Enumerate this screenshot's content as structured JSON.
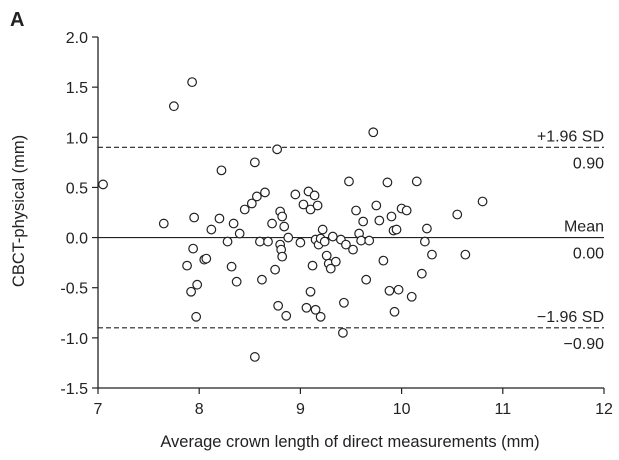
{
  "panel_label": "A",
  "chart_data": {
    "type": "scatter",
    "title": "",
    "xlabel": "Average crown length of direct measurements (mm)",
    "ylabel": "CBCT-physical (mm)",
    "xlim": [
      7,
      12
    ],
    "ylim": [
      -1.5,
      2.0
    ],
    "xticks": [
      7,
      8,
      9,
      10,
      11,
      12
    ],
    "xtick_labels": [
      "7",
      "8",
      "9",
      "10",
      "11",
      "12"
    ],
    "yticks": [
      2.0,
      1.5,
      1.0,
      0.5,
      0.0,
      -0.5,
      -1.0,
      -1.5
    ],
    "ytick_labels": [
      "2.0",
      "1.5",
      "1.0",
      "0.5",
      "0.0",
      "-0.5",
      "-1.0",
      "-1.5"
    ],
    "grid": false,
    "reference_lines": [
      {
        "y": 0.9,
        "style": "dashed",
        "label_above": "+1.96 SD",
        "label_below": "0.90"
      },
      {
        "y": 0.0,
        "style": "solid",
        "label_above": "Mean",
        "label_below": "0.00"
      },
      {
        "y": -0.9,
        "style": "dashed",
        "label_above": "−1.96 SD",
        "label_below": "−0.90"
      }
    ],
    "marker": "open-circle",
    "points": [
      [
        7.05,
        0.53
      ],
      [
        7.65,
        0.14
      ],
      [
        7.75,
        1.31
      ],
      [
        7.93,
        1.55
      ],
      [
        7.95,
        0.2
      ],
      [
        7.94,
        -0.11
      ],
      [
        7.88,
        -0.28
      ],
      [
        7.92,
        -0.54
      ],
      [
        7.98,
        -0.47
      ],
      [
        7.97,
        -0.79
      ],
      [
        8.05,
        -0.22
      ],
      [
        8.07,
        -0.21
      ],
      [
        8.12,
        0.08
      ],
      [
        8.2,
        0.19
      ],
      [
        8.22,
        0.67
      ],
      [
        8.28,
        -0.04
      ],
      [
        8.32,
        -0.29
      ],
      [
        8.34,
        0.14
      ],
      [
        8.37,
        -0.44
      ],
      [
        8.4,
        0.04
      ],
      [
        8.45,
        0.28
      ],
      [
        8.52,
        0.34
      ],
      [
        8.55,
        0.75
      ],
      [
        8.57,
        0.41
      ],
      [
        8.6,
        -0.04
      ],
      [
        8.62,
        -0.42
      ],
      [
        8.65,
        0.45
      ],
      [
        8.68,
        -0.04
      ],
      [
        8.72,
        0.14
      ],
      [
        8.75,
        -0.32
      ],
      [
        8.77,
        0.88
      ],
      [
        8.78,
        -0.68
      ],
      [
        8.8,
        0.26
      ],
      [
        8.82,
        0.21
      ],
      [
        8.8,
        -0.07
      ],
      [
        8.81,
        -0.12
      ],
      [
        8.82,
        -0.19
      ],
      [
        8.84,
        0.11
      ],
      [
        8.86,
        -0.78
      ],
      [
        8.88,
        0.0
      ],
      [
        8.55,
        -1.19
      ],
      [
        8.95,
        0.43
      ],
      [
        9.0,
        -0.05
      ],
      [
        9.03,
        0.33
      ],
      [
        9.06,
        -0.7
      ],
      [
        9.08,
        0.46
      ],
      [
        9.1,
        0.28
      ],
      [
        9.1,
        -0.54
      ],
      [
        9.12,
        -0.28
      ],
      [
        9.14,
        0.42
      ],
      [
        9.15,
        -0.02
      ],
      [
        9.15,
        -0.72
      ],
      [
        9.17,
        0.32
      ],
      [
        9.18,
        -0.07
      ],
      [
        9.2,
        -0.01
      ],
      [
        9.2,
        -0.79
      ],
      [
        9.22,
        0.08
      ],
      [
        9.24,
        -0.04
      ],
      [
        9.26,
        -0.18
      ],
      [
        9.28,
        -0.26
      ],
      [
        9.3,
        -0.31
      ],
      [
        9.32,
        0.01
      ],
      [
        9.35,
        -0.24
      ],
      [
        9.4,
        -0.02
      ],
      [
        9.43,
        -0.65
      ],
      [
        9.45,
        -0.07
      ],
      [
        9.42,
        -0.95
      ],
      [
        9.48,
        0.56
      ],
      [
        9.52,
        -0.12
      ],
      [
        9.55,
        0.27
      ],
      [
        9.58,
        0.04
      ],
      [
        9.6,
        -0.03
      ],
      [
        9.62,
        0.16
      ],
      [
        9.65,
        -0.42
      ],
      [
        9.68,
        -0.03
      ],
      [
        9.72,
        1.05
      ],
      [
        9.75,
        0.32
      ],
      [
        9.78,
        0.17
      ],
      [
        9.82,
        -0.23
      ],
      [
        9.86,
        0.55
      ],
      [
        9.88,
        -0.53
      ],
      [
        9.9,
        0.21
      ],
      [
        9.92,
        0.07
      ],
      [
        9.93,
        -0.74
      ],
      [
        9.95,
        0.08
      ],
      [
        9.97,
        -0.52
      ],
      [
        10.0,
        0.29
      ],
      [
        10.05,
        0.27
      ],
      [
        10.1,
        -0.59
      ],
      [
        10.15,
        0.56
      ],
      [
        10.2,
        -0.36
      ],
      [
        10.23,
        -0.04
      ],
      [
        10.25,
        0.09
      ],
      [
        10.3,
        -0.17
      ],
      [
        10.55,
        0.23
      ],
      [
        10.63,
        -0.17
      ],
      [
        10.8,
        0.36
      ]
    ]
  }
}
